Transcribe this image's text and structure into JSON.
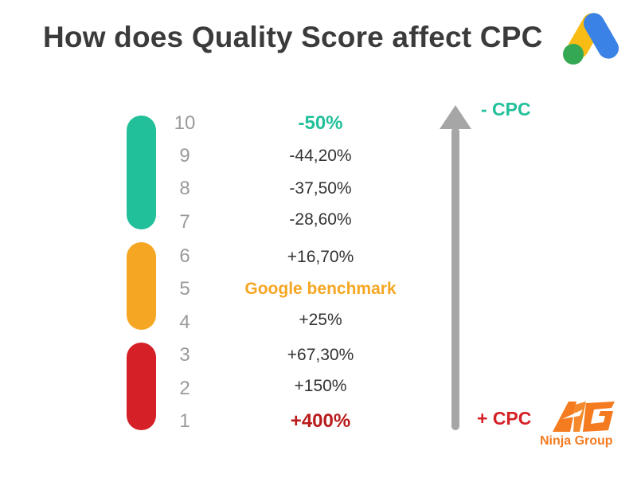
{
  "title": "How does Quality Score affect CPC",
  "colors": {
    "green": "#22c09a",
    "yellow": "#f5a623",
    "red": "#d52027",
    "score_gray": "#9a9a9a",
    "arrow_gray": "#a6a6a6",
    "ninja_orange": "#f47b20"
  },
  "icons": {
    "google_ads_logo": "google-ads-icon",
    "ninja_group_logo": "ninja-group-logo-icon"
  },
  "rows": [
    {
      "score": "10",
      "value": "-50%"
    },
    {
      "score": "9",
      "value": "-44,20%"
    },
    {
      "score": "8",
      "value": "-37,50%"
    },
    {
      "score": "7",
      "value": "-28,60%"
    },
    {
      "score": "6",
      "value": "+16,70%"
    },
    {
      "score": "5",
      "value": "Google benchmark"
    },
    {
      "score": "4",
      "value": "+25%"
    },
    {
      "score": "3",
      "value": "+67,30%"
    },
    {
      "score": "2",
      "value": "+150%"
    },
    {
      "score": "1",
      "value": "+400%"
    }
  ],
  "arrow": {
    "top_label": "- CPC",
    "bottom_label": "+ CPC"
  },
  "brand": {
    "name": "Ninja Group"
  }
}
